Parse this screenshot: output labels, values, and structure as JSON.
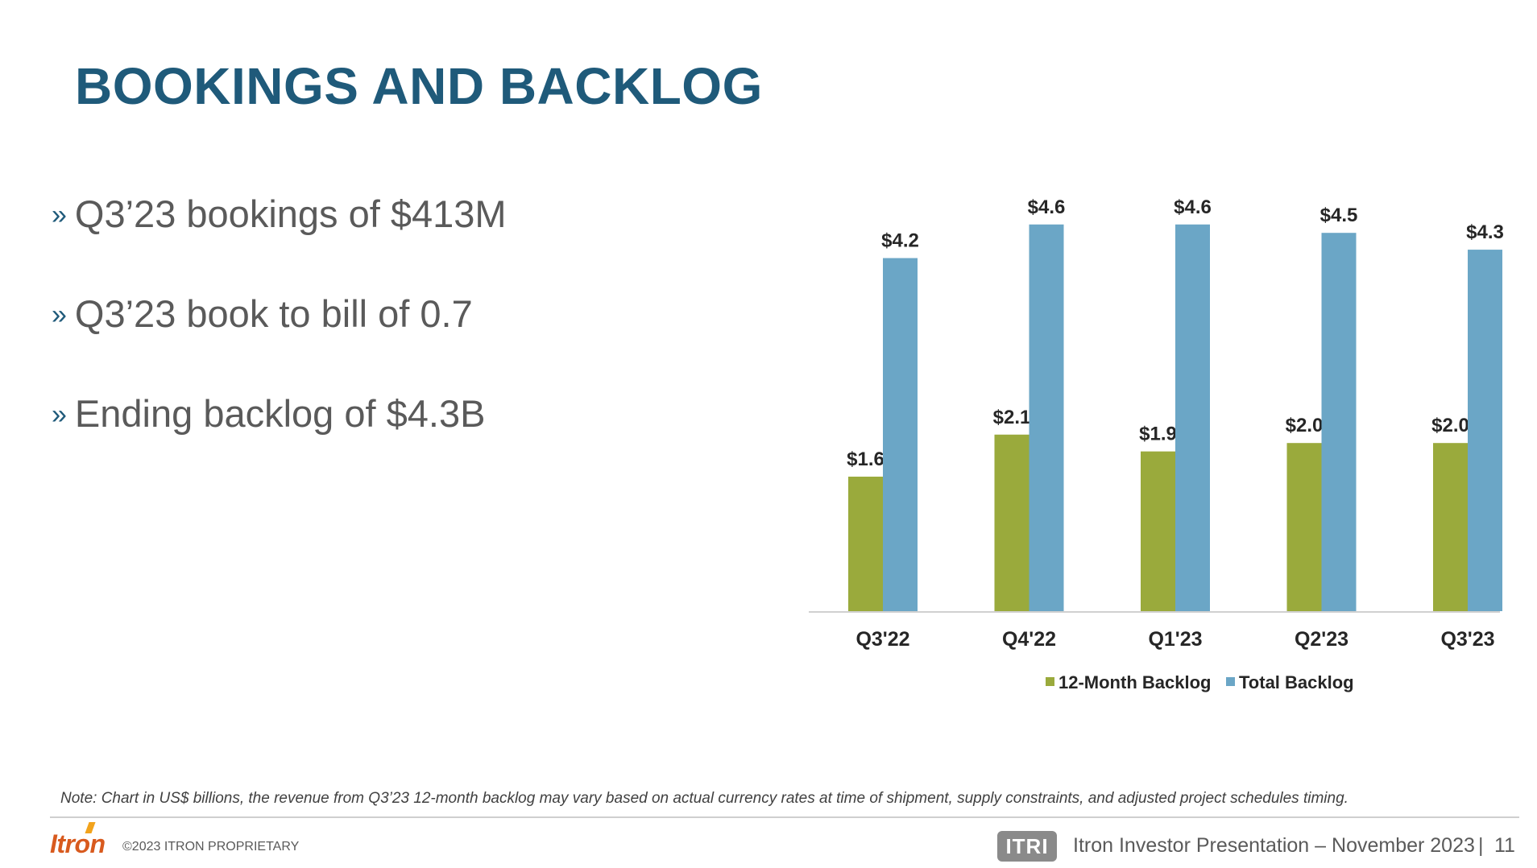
{
  "title": "BOOKINGS AND BACKLOG",
  "bullets": [
    {
      "mark": "»",
      "text": "Q3’23 bookings of $413M"
    },
    {
      "mark": "»",
      "text": "Q3’23 book to bill of 0.7"
    },
    {
      "mark": "»",
      "text": "Ending backlog of $4.3B"
    }
  ],
  "chart_data": {
    "type": "bar",
    "categories": [
      "Q3'22",
      "Q4'22",
      "Q1'23",
      "Q2'23",
      "Q3'23"
    ],
    "series": [
      {
        "name": "12-Month Backlog",
        "values": [
          1.6,
          2.1,
          1.9,
          2.0,
          2.0
        ],
        "labels": [
          "$1.6",
          "$2.1",
          "$1.9",
          "$2.0",
          "$2.0"
        ],
        "color": "#9AAA3C"
      },
      {
        "name": "Total Backlog",
        "values": [
          4.2,
          4.6,
          4.6,
          4.5,
          4.3
        ],
        "labels": [
          "$4.2",
          "$4.6",
          "$4.6",
          "$4.5",
          "$4.3"
        ],
        "color": "#6BA6C6"
      }
    ],
    "ylim": [
      0,
      5
    ],
    "legend": "bottom",
    "grid": false
  },
  "note": "Note: Chart in US$ billions, the revenue from Q3’23 12-month backlog may vary based on actual currency rates at time of shipment, supply constraints, and adjusted project schedules timing.",
  "footer": {
    "logo": "Itron",
    "copyright": "©2023  ITRON PROPRIETARY",
    "ticker": "ITRI",
    "presentation": "Itron Investor Presentation – November 2023",
    "separator": "|",
    "page": "11"
  },
  "colors": {
    "title": "#1F5A7A",
    "text": "#5A5A5A",
    "green": "#9AAA3C",
    "blue": "#6BA6C6"
  }
}
